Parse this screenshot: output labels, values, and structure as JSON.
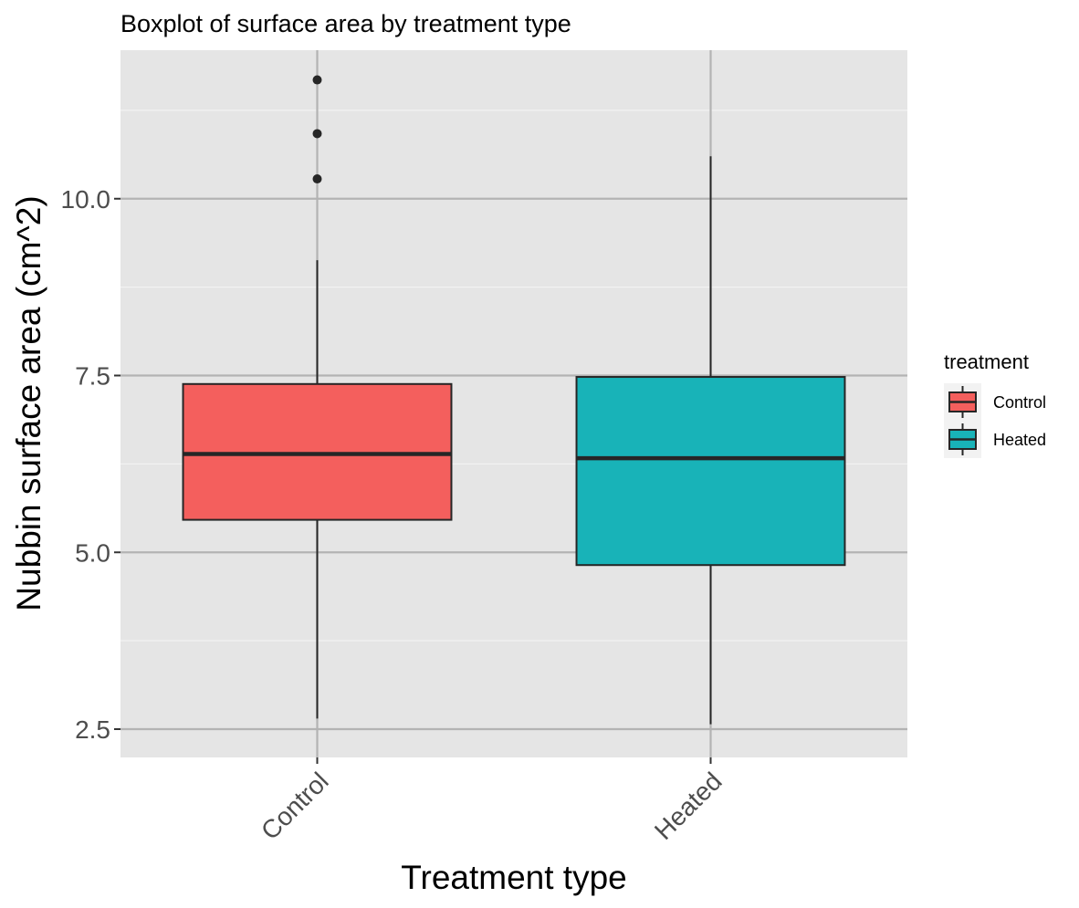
{
  "chart_data": {
    "type": "boxplot",
    "title": "Boxplot of surface area by treatment type",
    "xlabel": "Treatment type",
    "ylabel": "Nubbin surface area (cm^2)",
    "ylim": [
      2.1,
      12.1
    ],
    "y_ticks": [
      2.5,
      5.0,
      7.5,
      10.0
    ],
    "y_tick_labels": [
      "2.5",
      "5.0",
      "7.5",
      "10.0"
    ],
    "grid": true,
    "categories": [
      "Control",
      "Heated"
    ],
    "series": [
      {
        "name": "Control",
        "color": "#F45F5D",
        "whisker_low": 2.65,
        "q1": 5.46,
        "median": 6.39,
        "q3": 7.38,
        "whisker_high": 9.13,
        "outliers": [
          10.28,
          10.92,
          11.68
        ]
      },
      {
        "name": "Heated",
        "color": "#18B3B8",
        "whisker_low": 2.57,
        "q1": 4.82,
        "median": 6.33,
        "q3": 7.48,
        "whisker_high": 10.6,
        "outliers": []
      }
    ],
    "legend": {
      "title": "treatment",
      "position": "right",
      "entries": [
        "Control",
        "Heated"
      ]
    },
    "colors": {
      "panel_background": "#E5E5E5",
      "major_grid": "#B3B3B3",
      "minor_grid": "#F2F2F2",
      "box_outline": "#262626",
      "outlier": "#262626"
    }
  }
}
